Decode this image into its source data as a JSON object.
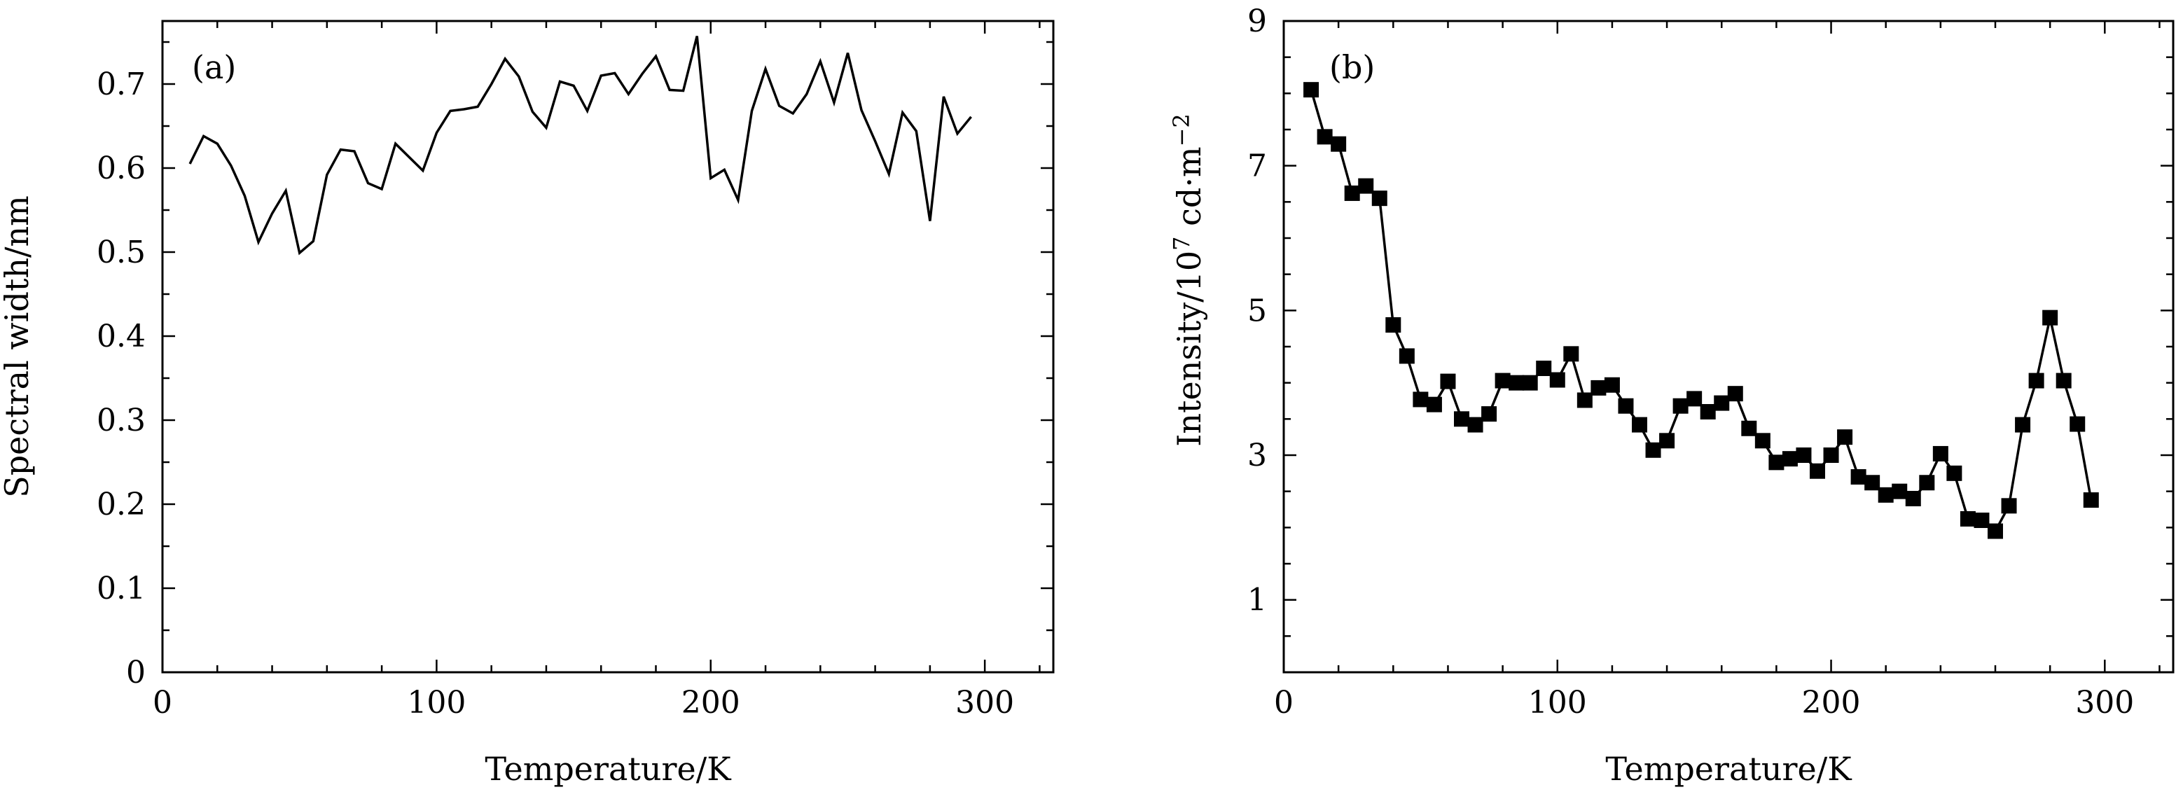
{
  "chart_data": [
    {
      "type": "line",
      "panel": "(a)",
      "xlabel": "Temperature/K",
      "ylabel": "Spectral width/nm",
      "xlim": [
        0,
        325
      ],
      "ylim": [
        0,
        0.775
      ],
      "xticks": [
        0,
        100,
        200,
        300
      ],
      "xtick_labels": [
        "0",
        "100",
        "200",
        "300"
      ],
      "yticks": [
        0,
        0.1,
        0.2,
        0.3,
        0.4,
        0.5,
        0.6,
        0.7
      ],
      "ytick_labels": [
        "0",
        "0.1",
        "0.2",
        "0.3",
        "0.4",
        "0.5",
        "0.6",
        "0.7"
      ],
      "x_minor_step": 20,
      "y_minor_step": 0.05,
      "markers": false,
      "x": [
        10,
        15,
        20,
        25,
        30,
        35,
        40,
        45,
        50,
        55,
        60,
        65,
        70,
        75,
        80,
        85,
        90,
        95,
        100,
        105,
        110,
        115,
        120,
        125,
        130,
        135,
        140,
        145,
        150,
        155,
        160,
        165,
        170,
        175,
        180,
        185,
        190,
        195,
        200,
        205,
        210,
        215,
        220,
        225,
        230,
        235,
        240,
        245,
        250,
        255,
        260,
        265,
        270,
        275,
        280,
        285,
        290,
        295
      ],
      "y": [
        0.605,
        0.638,
        0.629,
        0.603,
        0.567,
        0.512,
        0.546,
        0.573,
        0.499,
        0.513,
        0.592,
        0.622,
        0.62,
        0.582,
        0.575,
        0.629,
        0.613,
        0.597,
        0.642,
        0.668,
        0.67,
        0.673,
        0.7,
        0.73,
        0.709,
        0.667,
        0.648,
        0.703,
        0.698,
        0.668,
        0.71,
        0.713,
        0.688,
        0.712,
        0.733,
        0.693,
        0.692,
        0.757,
        0.588,
        0.598,
        0.562,
        0.668,
        0.718,
        0.674,
        0.665,
        0.688,
        0.727,
        0.678,
        0.737,
        0.669,
        0.632,
        0.593,
        0.666,
        0.644,
        0.537,
        0.685,
        0.641,
        0.661
      ]
    },
    {
      "type": "line",
      "panel": "(b)",
      "xlabel": "Temperature/K",
      "ylabel_parts": [
        "Intensity/10",
        "7",
        " cd·m",
        "−2"
      ],
      "xlim": [
        0,
        325
      ],
      "ylim": [
        0,
        9
      ],
      "xticks": [
        0,
        100,
        200,
        300
      ],
      "xtick_labels": [
        "0",
        "100",
        "200",
        "300"
      ],
      "yticks": [
        1,
        3,
        5,
        7,
        9
      ],
      "ytick_labels": [
        "1",
        "3",
        "5",
        "7",
        "9"
      ],
      "x_minor_step": 20,
      "y_minor_step": 0.5,
      "markers": true,
      "x": [
        10,
        15,
        20,
        25,
        30,
        35,
        40,
        45,
        50,
        55,
        60,
        65,
        70,
        75,
        80,
        85,
        90,
        95,
        100,
        105,
        110,
        115,
        120,
        125,
        130,
        135,
        140,
        145,
        150,
        155,
        160,
        165,
        170,
        175,
        180,
        185,
        190,
        195,
        200,
        205,
        210,
        215,
        220,
        225,
        230,
        235,
        240,
        245,
        250,
        255,
        260,
        265,
        270,
        275,
        280,
        285,
        290,
        295
      ],
      "y": [
        8.05,
        7.4,
        7.3,
        6.62,
        6.72,
        6.55,
        4.8,
        4.37,
        3.77,
        3.7,
        4.02,
        3.5,
        3.42,
        3.57,
        4.03,
        4.0,
        4.0,
        4.2,
        4.04,
        4.4,
        3.76,
        3.93,
        3.97,
        3.68,
        3.42,
        3.07,
        3.2,
        3.68,
        3.78,
        3.6,
        3.72,
        3.85,
        3.37,
        3.2,
        2.9,
        2.95,
        3.0,
        2.78,
        3.0,
        3.25,
        2.7,
        2.62,
        2.45,
        2.5,
        2.4,
        2.62,
        3.02,
        2.75,
        2.12,
        2.1,
        1.95,
        2.3,
        3.42,
        4.03,
        4.9,
        4.03,
        3.43,
        2.38
      ]
    }
  ]
}
